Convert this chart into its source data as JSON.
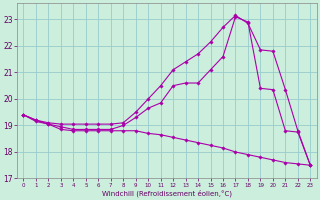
{
  "xlabel": "Windchill (Refroidissement éolien,°C)",
  "background_color": "#cceedd",
  "grid_color": "#99cccc",
  "line_color": "#aa00aa",
  "xlim": [
    -0.5,
    23.5
  ],
  "ylim": [
    17,
    23.6
  ],
  "yticks": [
    17,
    18,
    19,
    20,
    21,
    22,
    23
  ],
  "xticks": [
    0,
    1,
    2,
    3,
    4,
    5,
    6,
    7,
    8,
    9,
    10,
    11,
    12,
    13,
    14,
    15,
    16,
    17,
    18,
    19,
    20,
    21,
    22,
    23
  ],
  "series": [
    [
      19.4,
      19.15,
      19.05,
      18.85,
      18.8,
      18.8,
      18.8,
      18.8,
      18.8,
      18.8,
      18.7,
      18.65,
      18.55,
      18.45,
      18.35,
      18.25,
      18.15,
      18.0,
      17.9,
      17.8,
      17.7,
      17.6,
      17.55,
      17.5
    ],
    [
      19.4,
      19.2,
      19.05,
      18.95,
      18.85,
      18.85,
      18.85,
      18.85,
      19.0,
      19.3,
      19.65,
      19.85,
      20.5,
      20.6,
      20.6,
      21.1,
      21.6,
      23.1,
      22.9,
      20.4,
      20.35,
      18.8,
      18.75,
      17.5
    ],
    [
      19.4,
      19.2,
      19.1,
      19.05,
      19.05,
      19.05,
      19.05,
      19.05,
      19.1,
      19.5,
      20.0,
      20.5,
      21.1,
      21.4,
      21.7,
      22.15,
      22.7,
      23.15,
      22.85,
      21.85,
      21.8,
      20.35,
      18.8,
      17.5
    ]
  ]
}
